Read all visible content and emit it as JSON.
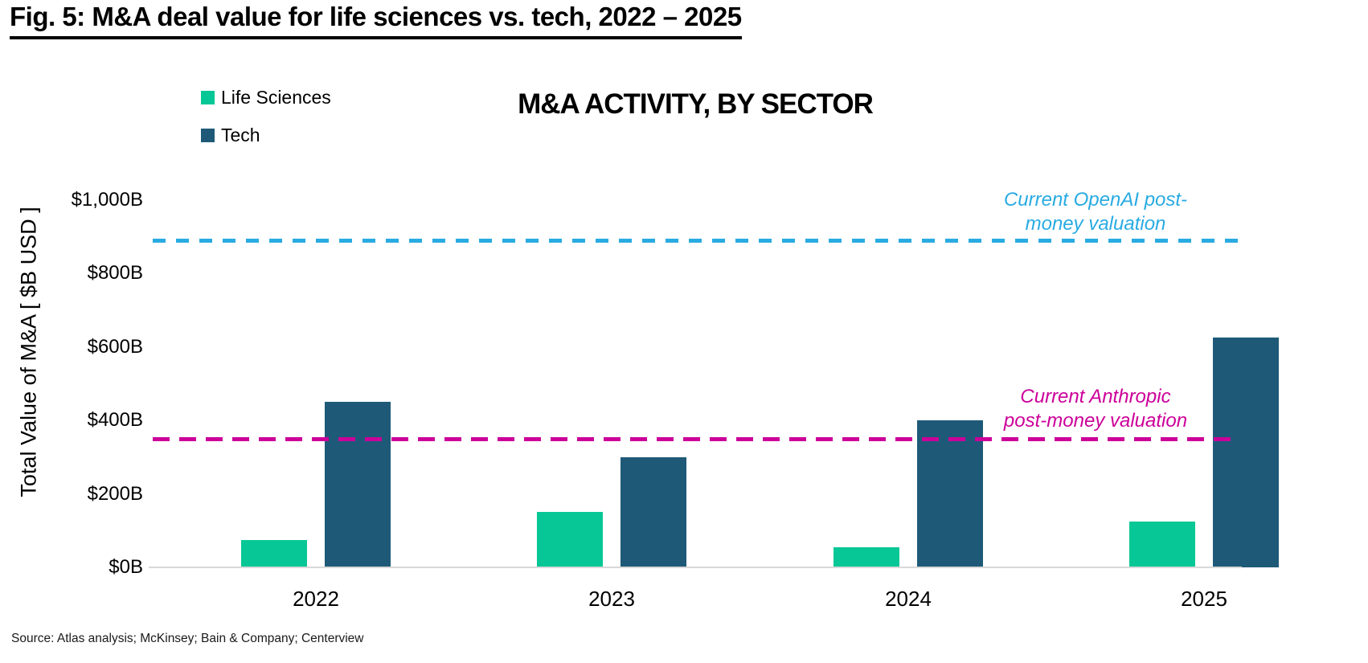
{
  "page_title": "Fig. 5: M&A deal value for life sciences vs. tech, 2022 – 2025",
  "source_note": "Source: Atlas analysis; McKinsey; Bain & Company; Centerview",
  "chart_data": {
    "type": "bar",
    "title": "M&A ACTIVITY, BY SECTOR",
    "ylabel": "Total Value of M&A [ $B USD ]",
    "xlabel": "",
    "categories": [
      "2022",
      "2023",
      "2024",
      "2025"
    ],
    "series": [
      {
        "name": "Life Sciences",
        "color": "#06C795",
        "values": [
          75,
          150,
          55,
          125
        ]
      },
      {
        "name": "Tech",
        "color": "#1E5A78",
        "values": [
          450,
          300,
          400,
          625
        ]
      }
    ],
    "ylim": [
      0,
      1000
    ],
    "yticks": [
      0,
      200,
      400,
      600,
      800,
      1000
    ],
    "ytick_labels": [
      "$0B",
      "$200B",
      "$400B",
      "$600B",
      "$800B",
      "$1,000B"
    ],
    "grid": false,
    "legend_position": "top-left",
    "reference_lines": [
      {
        "name": "openai",
        "label": "Current OpenAI post-money valuation",
        "value": 890,
        "color": "#29ABE2",
        "style": "dashed"
      },
      {
        "name": "anthropic",
        "label": "Current Anthropic post-money valuation",
        "value": 350,
        "color": "#CC0099",
        "style": "dashed"
      }
    ]
  },
  "annotations": {
    "openai_line1": "Current OpenAI post-",
    "openai_line2": "money valuation",
    "anthropic_line1": "Current Anthropic",
    "anthropic_line2": "post-money valuation"
  }
}
